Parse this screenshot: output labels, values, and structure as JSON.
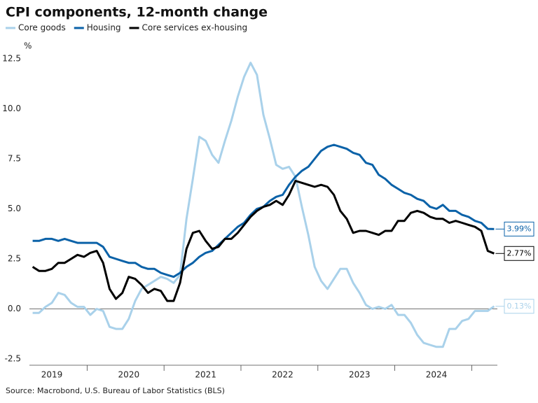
{
  "chart_data": {
    "type": "line",
    "title": "CPI components, 12-month change",
    "y_unit": "%",
    "source": "Source: Macrobond, U.S. Bureau of Labor Statistics (BLS)",
    "categories": [
      null,
      null,
      null,
      "2019",
      null,
      null,
      null,
      null,
      null,
      null,
      null,
      null,
      null,
      null,
      null,
      "2020",
      null,
      null,
      null,
      null,
      null,
      null,
      null,
      null,
      null,
      null,
      null,
      "2021",
      null,
      null,
      null,
      null,
      null,
      null,
      null,
      null,
      null,
      null,
      null,
      "2022",
      null,
      null,
      null,
      null,
      null,
      null,
      null,
      null,
      null,
      null,
      null,
      "2023",
      null,
      null,
      null,
      null,
      null,
      null,
      null,
      null,
      null,
      null,
      null,
      "2024",
      null,
      null,
      null,
      null,
      null,
      null,
      null,
      null,
      null
    ],
    "ylim": [
      -2.5,
      12.5
    ],
    "yticks": [
      -2.5,
      {
        "value": 0,
        "label": "0.0"
      },
      2.5,
      {
        "value": 5,
        "label": "5.0"
      },
      7.5,
      {
        "value": 10,
        "label": "10.0"
      },
      12.5
    ],
    "series": [
      {
        "name": "Core goods",
        "color": "#a9d1ea",
        "last_label": "0.13%",
        "values": [
          -0.2,
          -0.2,
          0.1,
          0.3,
          0.8,
          0.7,
          0.3,
          0.1,
          0.1,
          -0.3,
          0,
          -0.1,
          -0.9,
          -1.0,
          -1.0,
          -0.5,
          0.4,
          1.0,
          1.2,
          1.4,
          1.6,
          1.5,
          1.3,
          1.7,
          4.5,
          6.5,
          8.6,
          8.4,
          7.7,
          7.3,
          8.4,
          9.4,
          10.6,
          11.6,
          12.3,
          11.7,
          9.7,
          8.5,
          7.2,
          7.0,
          7.1,
          6.6,
          5.1,
          3.7,
          2.1,
          1.4,
          1.0,
          1.5,
          2.0,
          2.0,
          1.3,
          0.8,
          0.2,
          0.0,
          0.1,
          0.0,
          0.2,
          -0.3,
          -0.3,
          -0.7,
          -1.3,
          -1.7,
          -1.8,
          -1.9,
          -1.9,
          -1.0,
          -1.0,
          -0.6,
          -0.5,
          -0.1,
          -0.1,
          -0.1,
          0.13
        ]
      },
      {
        "name": "Housing",
        "color": "#0b62a8",
        "last_label": "3.99%",
        "values": [
          3.4,
          3.4,
          3.5,
          3.5,
          3.4,
          3.5,
          3.4,
          3.3,
          3.3,
          3.3,
          3.3,
          3.1,
          2.6,
          2.5,
          2.4,
          2.3,
          2.3,
          2.1,
          2.0,
          2.0,
          1.8,
          1.7,
          1.6,
          1.8,
          2.1,
          2.3,
          2.6,
          2.8,
          2.9,
          3.2,
          3.5,
          3.8,
          4.1,
          4.3,
          4.7,
          5.0,
          5.1,
          5.4,
          5.6,
          5.7,
          6.2,
          6.6,
          6.9,
          7.1,
          7.5,
          7.9,
          8.1,
          8.2,
          8.1,
          8.0,
          7.8,
          7.7,
          7.3,
          7.2,
          6.7,
          6.5,
          6.2,
          6.0,
          5.8,
          5.7,
          5.5,
          5.4,
          5.1,
          5.0,
          5.2,
          4.9,
          4.9,
          4.7,
          4.6,
          4.4,
          4.3,
          4.0,
          3.99
        ]
      },
      {
        "name": "Core services ex-housing",
        "color": "#000000",
        "last_label": "2.77%",
        "values": [
          2.1,
          1.9,
          1.9,
          2.0,
          2.3,
          2.3,
          2.5,
          2.7,
          2.6,
          2.8,
          2.9,
          2.3,
          1.0,
          0.5,
          0.8,
          1.6,
          1.5,
          1.2,
          0.8,
          1.0,
          0.9,
          0.4,
          0.4,
          1.3,
          3.0,
          3.8,
          3.9,
          3.4,
          3.0,
          3.1,
          3.5,
          3.5,
          3.8,
          4.2,
          4.6,
          4.9,
          5.1,
          5.2,
          5.4,
          5.2,
          5.7,
          6.4,
          6.3,
          6.2,
          6.1,
          6.2,
          6.1,
          5.7,
          4.9,
          4.5,
          3.8,
          3.9,
          3.9,
          3.8,
          3.7,
          3.9,
          3.9,
          4.4,
          4.4,
          4.8,
          4.9,
          4.8,
          4.6,
          4.5,
          4.5,
          4.3,
          4.4,
          4.3,
          4.2,
          4.1,
          3.9,
          2.9,
          2.77
        ]
      }
    ]
  }
}
